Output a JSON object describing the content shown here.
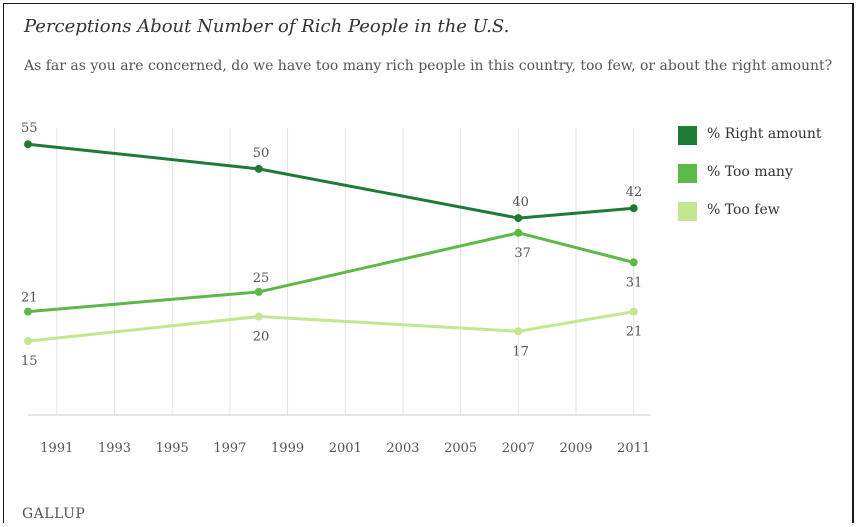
{
  "chart_data": {
    "type": "line",
    "title": "Perceptions About Number of Rich People in the U.S.",
    "subtitle": "As far as you are concerned, do we have too many rich people in this country, too few, or about the right amount?",
    "x": [
      1990,
      1998,
      2007,
      2011
    ],
    "xlim": [
      1990,
      2011.6
    ],
    "x_ticks": [
      1991,
      1993,
      1995,
      1997,
      1999,
      2001,
      2003,
      2005,
      2007,
      2009,
      2011
    ],
    "ylim": [
      0,
      65
    ],
    "grid": "vertical",
    "legend_position": "right",
    "series": [
      {
        "name": "% Right amount",
        "color": "#1e7b36",
        "values": [
          55,
          50,
          40,
          42
        ]
      },
      {
        "name": "% Too many",
        "color": "#5cb947",
        "values": [
          21,
          25,
          37,
          31
        ]
      },
      {
        "name": "% Too few",
        "color": "#c3e690",
        "values": [
          15,
          20,
          17,
          21
        ]
      }
    ]
  },
  "footer": {
    "logo": "GALLUP"
  }
}
